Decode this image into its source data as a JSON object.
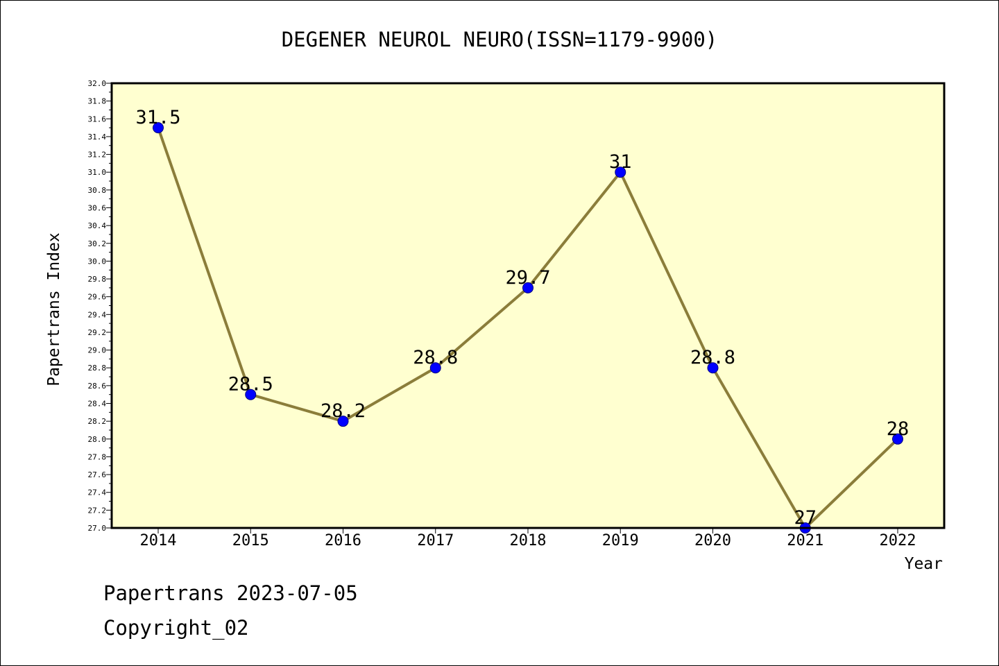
{
  "chart_data": {
    "type": "line",
    "title": "DEGENER NEUROL NEURO(ISSN=1179-9900)",
    "xlabel": "Year",
    "ylabel": "Papertrans Index",
    "categories": [
      "2014",
      "2015",
      "2016",
      "2017",
      "2018",
      "2019",
      "2020",
      "2021",
      "2022"
    ],
    "series": [
      {
        "values": [
          31.5,
          28.5,
          28.2,
          28.8,
          29.7,
          31.0,
          28.8,
          27.0,
          28.0
        ],
        "labels": [
          "31.5",
          "28.5",
          "28.2",
          "28.8",
          "29.7",
          "31",
          "28.8",
          "27",
          "28"
        ]
      }
    ],
    "ylim": [
      27.0,
      32.0
    ],
    "ytick_step": 0.2,
    "ytick_labels": [
      "27.0",
      "27.2",
      "27.4",
      "27.6",
      "27.8",
      "28.0",
      "28.2",
      "28.4",
      "28.6",
      "28.8",
      "29.0",
      "29.2",
      "29.4",
      "29.6",
      "29.8",
      "30.0",
      "30.2",
      "30.4",
      "30.6",
      "30.8",
      "31.0",
      "31.2",
      "31.4",
      "31.6",
      "31.8",
      "32.0"
    ],
    "grid": false,
    "colors": {
      "plot_background": "#ffffd0",
      "line": "#8b7d3a",
      "marker": "#0000ff",
      "marker_edge": "#000080",
      "axes": "#000000",
      "text": "#000000"
    }
  },
  "footer": {
    "date_line": "Papertrans 2023-07-05",
    "copyright": "Copyright_02"
  }
}
